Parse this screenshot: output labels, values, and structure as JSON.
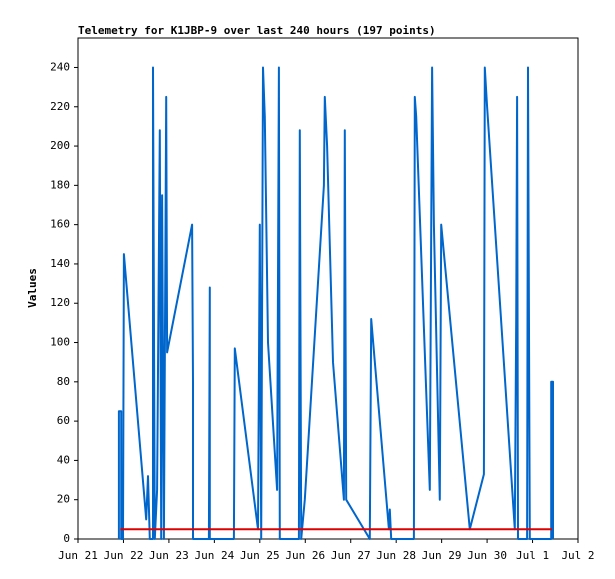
{
  "chart_data": {
    "type": "line",
    "title": "Telemetry for K1JBP-9 over last 240 hours (197 points)",
    "y_label": "Values",
    "xlim": [
      0,
      11
    ],
    "ylim": [
      0,
      255
    ],
    "xticks": [
      {
        "value": 0,
        "label": "Jun 21"
      },
      {
        "value": 1,
        "label": "Jun 22"
      },
      {
        "value": 2,
        "label": "Jun 23"
      },
      {
        "value": 3,
        "label": "Jun 24"
      },
      {
        "value": 4,
        "label": "Jun 25"
      },
      {
        "value": 5,
        "label": "Jun 26"
      },
      {
        "value": 6,
        "label": "Jun 27"
      },
      {
        "value": 7,
        "label": "Jun 28"
      },
      {
        "value": 8,
        "label": "Jun 29"
      },
      {
        "value": 9,
        "label": "Jun 30"
      },
      {
        "value": 10,
        "label": "Jul 1"
      },
      {
        "value": 11,
        "label": "Jul 2"
      }
    ],
    "yticks": [
      0,
      20,
      40,
      60,
      80,
      100,
      120,
      140,
      160,
      180,
      200,
      220,
      240
    ],
    "series": [
      {
        "color": "#0066cc",
        "x": [
          0.9,
          0.9,
          0.95,
          0.95,
          0.99,
          1.01,
          1.5,
          1.54,
          1.58,
          1.65,
          1.65,
          1.69,
          1.74,
          1.8,
          1.83,
          1.85,
          1.89,
          1.94,
          1.96,
          2.51,
          2.53,
          2.53,
          2.88,
          2.9,
          2.9,
          3.43,
          3.45,
          3.96,
          4.0,
          4.03,
          4.07,
          4.11,
          4.18,
          4.38,
          4.42,
          4.44,
          4.86,
          4.88,
          4.91,
          4.99,
          5.41,
          5.43,
          5.48,
          5.61,
          5.85,
          5.87,
          5.9,
          6.42,
          6.45,
          6.84,
          6.86,
          6.89,
          7.39,
          7.41,
          7.44,
          7.74,
          7.79,
          7.83,
          7.96,
          7.99,
          8.62,
          8.93,
          8.95,
          9.0,
          9.61,
          9.64,
          9.66,
          9.68,
          9.88,
          9.9,
          9.92,
          9.94,
          10.41,
          10.41,
          10.45,
          10.45
        ],
        "values": [
          0,
          65,
          65,
          0,
          0,
          145,
          10,
          32,
          0,
          0,
          240,
          0,
          25,
          208,
          0,
          175,
          0,
          225,
          95,
          160,
          80,
          0,
          0,
          128,
          0,
          0,
          97,
          5,
          160,
          0,
          240,
          215,
          100,
          25,
          240,
          0,
          0,
          208,
          0,
          20,
          180,
          225,
          200,
          90,
          20,
          208,
          20,
          0,
          112,
          5,
          15,
          0,
          0,
          225,
          215,
          25,
          240,
          160,
          20,
          160,
          5,
          33,
          240,
          220,
          5,
          112,
          225,
          0,
          0,
          240,
          120,
          0,
          0,
          80,
          80,
          0
        ]
      },
      {
        "color": "#dd0000",
        "x": [
          0.93,
          10.43
        ],
        "values": [
          5,
          5
        ]
      }
    ]
  }
}
